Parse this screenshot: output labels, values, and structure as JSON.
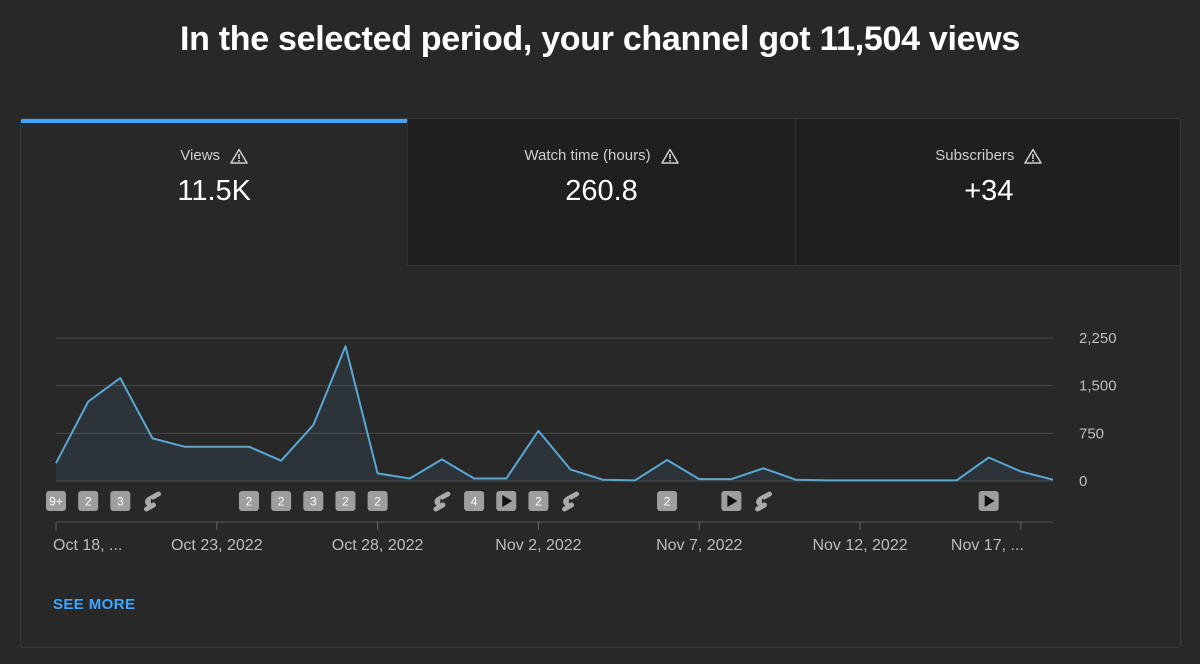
{
  "headline": "In the selected period, your channel got 11,504 views",
  "tabs": [
    {
      "label": "Views",
      "value": "11.5K",
      "active": true
    },
    {
      "label": "Watch time (hours)",
      "value": "260.8",
      "active": false
    },
    {
      "label": "Subscribers",
      "value": "+34",
      "active": false
    }
  ],
  "see_more": "SEE MORE",
  "colors": {
    "accent": "#3ea6ff",
    "line": "#5aa7d3",
    "background": "#282828"
  },
  "chart_data": {
    "type": "area",
    "x": [
      "Oct 18",
      "Oct 19",
      "Oct 20",
      "Oct 21",
      "Oct 22",
      "Oct 23",
      "Oct 24",
      "Oct 25",
      "Oct 26",
      "Oct 27",
      "Oct 28",
      "Oct 29",
      "Oct 30",
      "Oct 31",
      "Nov 1",
      "Nov 2",
      "Nov 3",
      "Nov 4",
      "Nov 5",
      "Nov 6",
      "Nov 7",
      "Nov 8",
      "Nov 9",
      "Nov 10",
      "Nov 11",
      "Nov 12",
      "Nov 13",
      "Nov 14",
      "Nov 15",
      "Nov 16",
      "Nov 17",
      "Nov 18"
    ],
    "series": [
      {
        "values": [
          280,
          1250,
          1620,
          670,
          540,
          540,
          540,
          320,
          880,
          2120,
          120,
          40,
          340,
          40,
          40,
          790,
          180,
          20,
          10,
          330,
          30,
          30,
          200,
          20,
          10,
          10,
          10,
          10,
          10,
          370,
          150,
          20
        ]
      }
    ],
    "xtick_labels": [
      "Oct 18, ...",
      "Oct 23, 2022",
      "Oct 28, 2022",
      "Nov 2, 2022",
      "Nov 7, 2022",
      "Nov 12, 2022",
      "Nov 17, ..."
    ],
    "xtick_indices": [
      0,
      5,
      10,
      15,
      20,
      25,
      30
    ],
    "yticks": [
      {
        "value": 2250,
        "label": "2,250"
      },
      {
        "value": 1500,
        "label": "1,500"
      },
      {
        "value": 750,
        "label": "750"
      },
      {
        "value": 0,
        "label": "0"
      }
    ],
    "ylim": [
      0,
      2250
    ],
    "grid": true,
    "markers": [
      {
        "index": 0,
        "type": "count",
        "label": "9+"
      },
      {
        "index": 1,
        "type": "count",
        "label": "2"
      },
      {
        "index": 2,
        "type": "count",
        "label": "3"
      },
      {
        "index": 3,
        "type": "shorts"
      },
      {
        "index": 6,
        "type": "count",
        "label": "2"
      },
      {
        "index": 7,
        "type": "count",
        "label": "2"
      },
      {
        "index": 8,
        "type": "count",
        "label": "3"
      },
      {
        "index": 9,
        "type": "count",
        "label": "2"
      },
      {
        "index": 10,
        "type": "count",
        "label": "2"
      },
      {
        "index": 12,
        "type": "shorts"
      },
      {
        "index": 13,
        "type": "count",
        "label": "4"
      },
      {
        "index": 14,
        "type": "video"
      },
      {
        "index": 15,
        "type": "count",
        "label": "2"
      },
      {
        "index": 16,
        "type": "shorts"
      },
      {
        "index": 19,
        "type": "count",
        "label": "2"
      },
      {
        "index": 21,
        "type": "video"
      },
      {
        "index": 22,
        "type": "shorts"
      },
      {
        "index": 29,
        "type": "video"
      }
    ]
  }
}
